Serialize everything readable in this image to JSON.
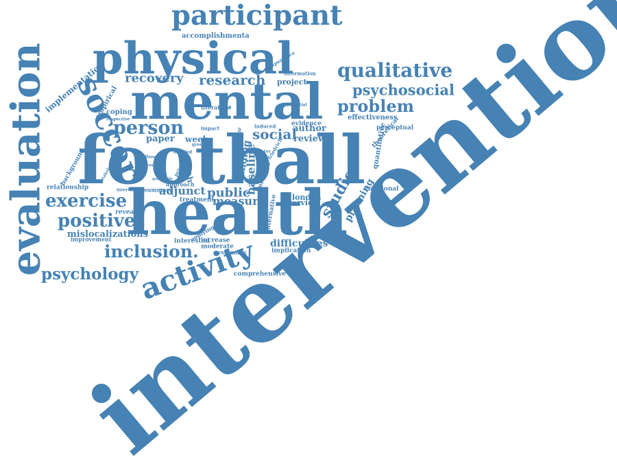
{
  "cloud": {
    "color": "#4682B4",
    "words": [
      {
        "text": "intervention",
        "rot": -40
      },
      {
        "text": "football",
        "rot": 0
      },
      {
        "text": "health",
        "rot": 0
      },
      {
        "text": "mental",
        "rot": 0
      },
      {
        "text": "physical",
        "rot": 0
      },
      {
        "text": "evaluation",
        "rot": -90
      },
      {
        "text": "participant",
        "rot": 0
      },
      {
        "text": "activity",
        "rot": -20
      },
      {
        "text": "soccer",
        "rot": 65
      },
      {
        "text": "exercise",
        "rot": 0
      },
      {
        "text": "positive",
        "rot": 0
      },
      {
        "text": "person",
        "rot": 0
      },
      {
        "text": "qualitative",
        "rot": 0
      },
      {
        "text": "problem",
        "rot": 0
      },
      {
        "text": "inclusion.",
        "rot": 0
      },
      {
        "text": "psychology",
        "rot": 0
      },
      {
        "text": "psychosocial",
        "rot": 0
      },
      {
        "text": "research",
        "rot": 0
      },
      {
        "text": "recovery",
        "rot": 0
      },
      {
        "text": "social",
        "rot": 0
      },
      {
        "text": "public",
        "rot": 0
      },
      {
        "text": "adjunct",
        "rot": 0
      },
      {
        "text": "measure",
        "rot": 0
      },
      {
        "text": "studies",
        "rot": -60
      },
      {
        "text": "difficulties",
        "rot": 0
      },
      {
        "text": "baseline",
        "rot": -90
      },
      {
        "text": "author",
        "rot": 0
      },
      {
        "text": "review",
        "rot": 0
      },
      {
        "text": "implementation",
        "rot": -40
      },
      {
        "text": "paper",
        "rot": 0
      },
      {
        "text": "week",
        "rot": 0
      },
      {
        "text": "project",
        "rot": 0
      },
      {
        "text": "planning",
        "rot": -60
      },
      {
        "text": "mislocalizations",
        "rot": 0
      },
      {
        "text": "finding",
        "rot": -80
      },
      {
        "text": "month",
        "rot": 75
      },
      {
        "text": "london",
        "rot": 0
      },
      {
        "text": "overview",
        "rot": 0
      },
      {
        "text": "accomplishmenta",
        "rot": 0
      },
      {
        "text": "potential",
        "rot": -70
      },
      {
        "text": "alternative",
        "rot": -80
      },
      {
        "text": "coping",
        "rot": 0
      },
      {
        "text": "empirical",
        "rot": -60
      },
      {
        "text": "background",
        "rot": -60
      },
      {
        "text": "relationship",
        "rot": 0
      },
      {
        "text": "effectiveness",
        "rot": 0
      },
      {
        "text": "quantitative",
        "rot": -80
      },
      {
        "text": "theoretical",
        "rot": -50
      },
      {
        "text": "perceptual",
        "rot": 0
      },
      {
        "text": "emotional",
        "rot": 0
      },
      {
        "text": "increase",
        "rot": 0
      },
      {
        "text": "moderate",
        "rot": 0
      },
      {
        "text": "interested",
        "rot": 0
      },
      {
        "text": "implication",
        "rot": 0
      },
      {
        "text": "comprehensive",
        "rot": 0
      },
      {
        "text": "revealed",
        "rot": 0
      },
      {
        "text": "improvement",
        "rot": 0
      },
      {
        "text": "treatment",
        "rot": 0
      },
      {
        "text": "systematic",
        "rot": 0
      },
      {
        "text": "approach",
        "rot": 0
      },
      {
        "text": "summary",
        "rot": 0
      },
      {
        "text": "applying",
        "rot": -30
      },
      {
        "text": "literature",
        "rot": 0
      },
      {
        "text": "impact",
        "rot": 0
      },
      {
        "text": "evidence",
        "rot": 0
      },
      {
        "text": "induced",
        "rot": 0
      },
      {
        "text": "similar",
        "rot": -80
      },
      {
        "text": "information",
        "rot": 0
      },
      {
        "text": "experience",
        "rot": -30
      },
      {
        "text": "differential",
        "rot": 0
      },
      {
        "text": "friedrich",
        "rot": -60
      },
      {
        "text": "challenge",
        "rot": 0
      },
      {
        "text": "detailed",
        "rot": 0
      },
      {
        "text": "principle",
        "rot": -60
      },
      {
        "text": "stakeholder",
        "rot": -60
      },
      {
        "text": "vigorous",
        "rot": 0
      },
      {
        "text": "available",
        "rot": 0
      },
      {
        "text": "respective",
        "rot": 0
      },
      {
        "text": "interview",
        "rot": 0
      },
      {
        "text": "based",
        "rot": 0
      },
      {
        "text": "group",
        "rot": 0
      },
      {
        "text": "study",
        "rot": -60
      },
      {
        "text": "greater",
        "rot": 0
      }
    ]
  }
}
